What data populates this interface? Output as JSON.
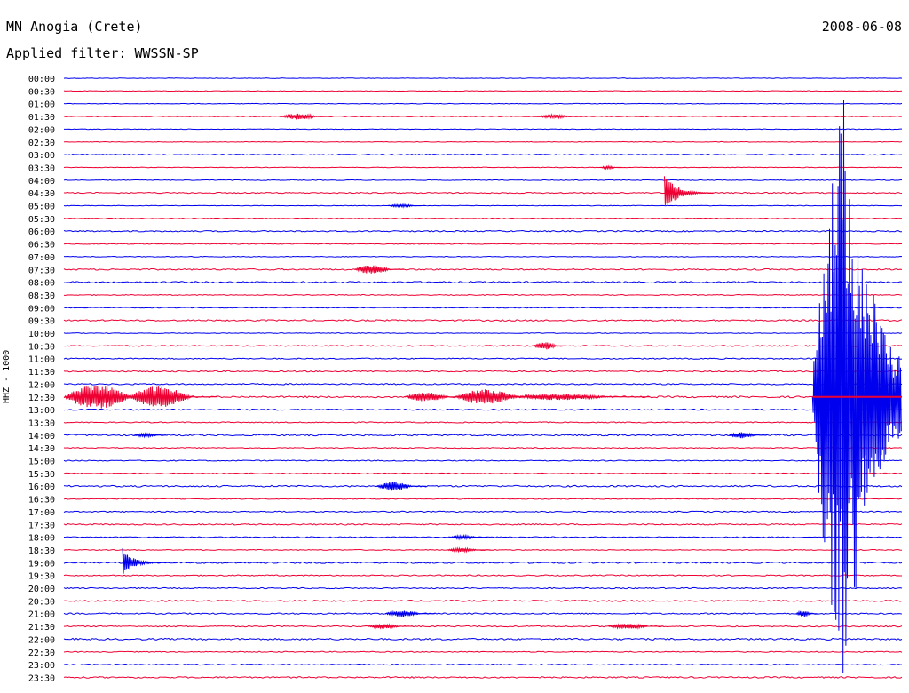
{
  "header": {
    "station": "MN Anogia (Crete)",
    "filter": "Applied filter: WWSSN-SP",
    "date": "2008-06-08",
    "channel_label": "HHZ - 1000"
  },
  "chart_data": {
    "type": "line",
    "title": "MN Anogia (Crete)",
    "subtitle": "Applied filter: WWSSN-SP",
    "ylabel": "HHZ - 1000",
    "xlabel": "",
    "date": "2008-06-08",
    "colors": {
      "even_rows": "#0000ee",
      "odd_rows": "#ee0033",
      "background": "#ffffff"
    },
    "grid": false,
    "rows": [
      "00:00",
      "00:30",
      "01:00",
      "01:30",
      "02:00",
      "02:30",
      "03:00",
      "03:30",
      "04:00",
      "04:30",
      "05:00",
      "05:30",
      "06:00",
      "06:30",
      "07:00",
      "07:30",
      "08:00",
      "08:30",
      "09:00",
      "09:30",
      "10:00",
      "10:30",
      "11:00",
      "11:30",
      "12:00",
      "12:30",
      "13:00",
      "13:30",
      "14:00",
      "14:30",
      "15:00",
      "15:30",
      "16:00",
      "16:30",
      "17:00",
      "17:30",
      "18:00",
      "18:30",
      "19:00",
      "19:30",
      "20:00",
      "20:30",
      "21:00",
      "21:30",
      "22:00",
      "22:30",
      "23:00",
      "23:30"
    ],
    "row_minutes": 30,
    "noise_level": [
      0.4,
      0.4,
      0.4,
      0.5,
      0.4,
      0.4,
      0.7,
      0.4,
      0.5,
      0.8,
      0.4,
      0.5,
      0.9,
      0.6,
      0.5,
      1.0,
      1.1,
      0.6,
      0.6,
      1.0,
      0.5,
      0.8,
      0.8,
      0.9,
      0.9,
      1.2,
      0.9,
      0.7,
      1.1,
      0.6,
      0.7,
      0.6,
      1.1,
      0.6,
      0.8,
      0.9,
      0.7,
      0.6,
      1.1,
      0.8,
      0.8,
      1.0,
      0.9,
      0.9,
      1.2,
      0.7,
      0.7,
      1.0
    ],
    "events": [
      {
        "row": "01:30",
        "start_min": 7.8,
        "duration_min": 1.8,
        "amplitude": 4
      },
      {
        "row": "01:30",
        "start_min": 17.0,
        "duration_min": 1.6,
        "amplitude": 2.5
      },
      {
        "row": "03:30",
        "start_min": 19.2,
        "duration_min": 0.8,
        "amplitude": 2
      },
      {
        "row": "04:30",
        "start_min": 21.5,
        "duration_min": 1.8,
        "amplitude": 26,
        "impulsive": true
      },
      {
        "row": "05:00",
        "start_min": 11.6,
        "duration_min": 1.4,
        "amplitude": 2
      },
      {
        "row": "07:30",
        "start_min": 10.4,
        "duration_min": 1.8,
        "amplitude": 6
      },
      {
        "row": "10:30",
        "start_min": 16.8,
        "duration_min": 1.2,
        "amplitude": 5
      },
      {
        "row": "12:30",
        "start_min": 0.0,
        "duration_min": 3.5,
        "amplitude": 16
      },
      {
        "row": "12:30",
        "start_min": 2.3,
        "duration_min": 3.2,
        "amplitude": 14
      },
      {
        "row": "12:30",
        "start_min": 12.2,
        "duration_min": 2.2,
        "amplitude": 6
      },
      {
        "row": "12:30",
        "start_min": 14.0,
        "duration_min": 3.2,
        "amplitude": 10
      },
      {
        "row": "12:30",
        "start_min": 16.0,
        "duration_min": 5.0,
        "amplitude": 4
      },
      {
        "row": "14:00",
        "start_min": 23.8,
        "duration_min": 1.4,
        "amplitude": 4
      },
      {
        "row": "14:00",
        "start_min": 2.5,
        "duration_min": 1.2,
        "amplitude": 2.5
      },
      {
        "row": "16:00",
        "start_min": 11.2,
        "duration_min": 1.8,
        "amplitude": 6
      },
      {
        "row": "18:00",
        "start_min": 13.8,
        "duration_min": 1.4,
        "amplitude": 2.5
      },
      {
        "row": "18:30",
        "start_min": 13.7,
        "duration_min": 1.6,
        "amplitude": 2.5
      },
      {
        "row": "19:00",
        "start_min": 2.1,
        "duration_min": 1.6,
        "amplitude": 18,
        "impulsive": true
      },
      {
        "row": "21:00",
        "start_min": 11.5,
        "duration_min": 1.8,
        "amplitude": 4
      },
      {
        "row": "21:00",
        "start_min": 26.2,
        "duration_min": 0.8,
        "amplitude": 4
      },
      {
        "row": "21:30",
        "start_min": 10.9,
        "duration_min": 1.6,
        "amplitude": 3
      },
      {
        "row": "21:30",
        "start_min": 19.5,
        "duration_min": 2.0,
        "amplitude": 3.5
      }
    ],
    "mainshock": {
      "row": "12:30",
      "start_min": 26.8,
      "duration_min": 3.2,
      "peak_amplitude": 400,
      "spill_rows_before": 24,
      "spill_rows_after": 24
    }
  }
}
